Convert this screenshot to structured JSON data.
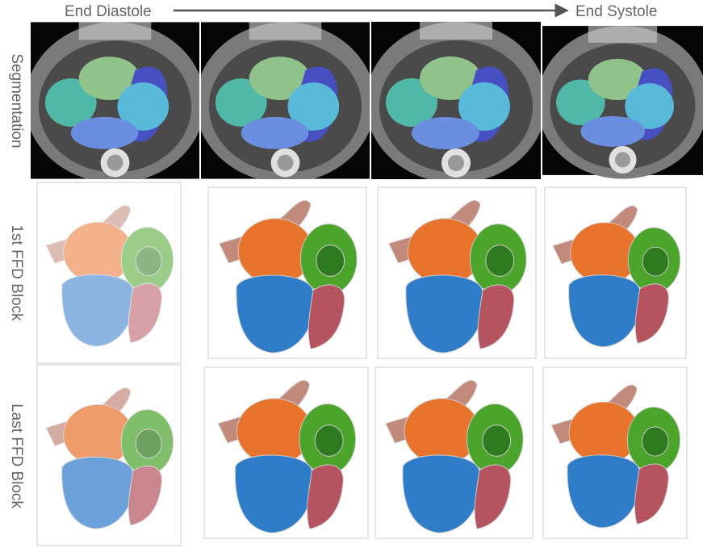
{
  "header": {
    "start": "End Diastole",
    "end": "End Systole"
  },
  "rows": [
    {
      "label": "Segmentation"
    },
    {
      "label": "1st FFD Block"
    },
    {
      "label": "Last FFD Block"
    }
  ]
}
